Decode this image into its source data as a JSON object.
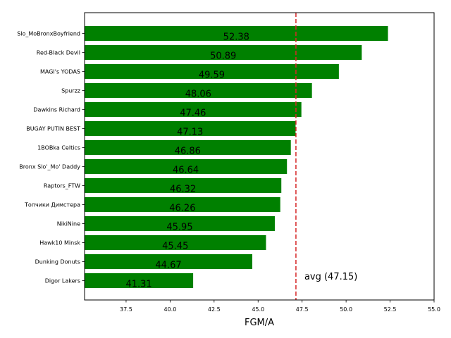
{
  "chart_data": {
    "type": "bar",
    "orientation": "horizontal",
    "title": "",
    "xlabel": "FGM/A",
    "ylabel": "",
    "xlim": [
      35.14,
      55.0
    ],
    "grid": false,
    "bar_color": "#008000",
    "categories": [
      "Slo_MoBronxBoyfriend",
      "Red-Black Devil",
      "MAGI's YODAS",
      "Spurzz",
      "Dawkins Richard",
      "BUGAY PUTIN BEST",
      "1BOBka Celtics",
      "Bronx Slo'_Mo' Daddy",
      "Raptors_FTW",
      "Топчики Димстера",
      "NikiNine",
      "Hawk10 Minsk",
      "Dunking Donuts",
      "Digor Lakers"
    ],
    "values": [
      52.38,
      50.89,
      49.59,
      48.06,
      47.46,
      47.13,
      46.86,
      46.64,
      46.32,
      46.26,
      45.95,
      45.45,
      44.67,
      41.31
    ],
    "value_labels": [
      "52.38",
      "50.89",
      "49.59",
      "48.06",
      "47.46",
      "47.13",
      "46.86",
      "46.64",
      "46.32",
      "46.26",
      "45.95",
      "45.45",
      "44.67",
      "41.31"
    ],
    "xticks": [
      37.5,
      40.0,
      42.5,
      45.0,
      47.5,
      50.0,
      52.5,
      55.0
    ],
    "xtick_labels": [
      "37.5",
      "40.0",
      "42.5",
      "45.0",
      "47.5",
      "50.0",
      "52.5",
      "55.0"
    ],
    "reference_line": {
      "value": 47.15,
      "style": "dashed",
      "color": "#d62728",
      "label": "avg (47.15)"
    }
  }
}
